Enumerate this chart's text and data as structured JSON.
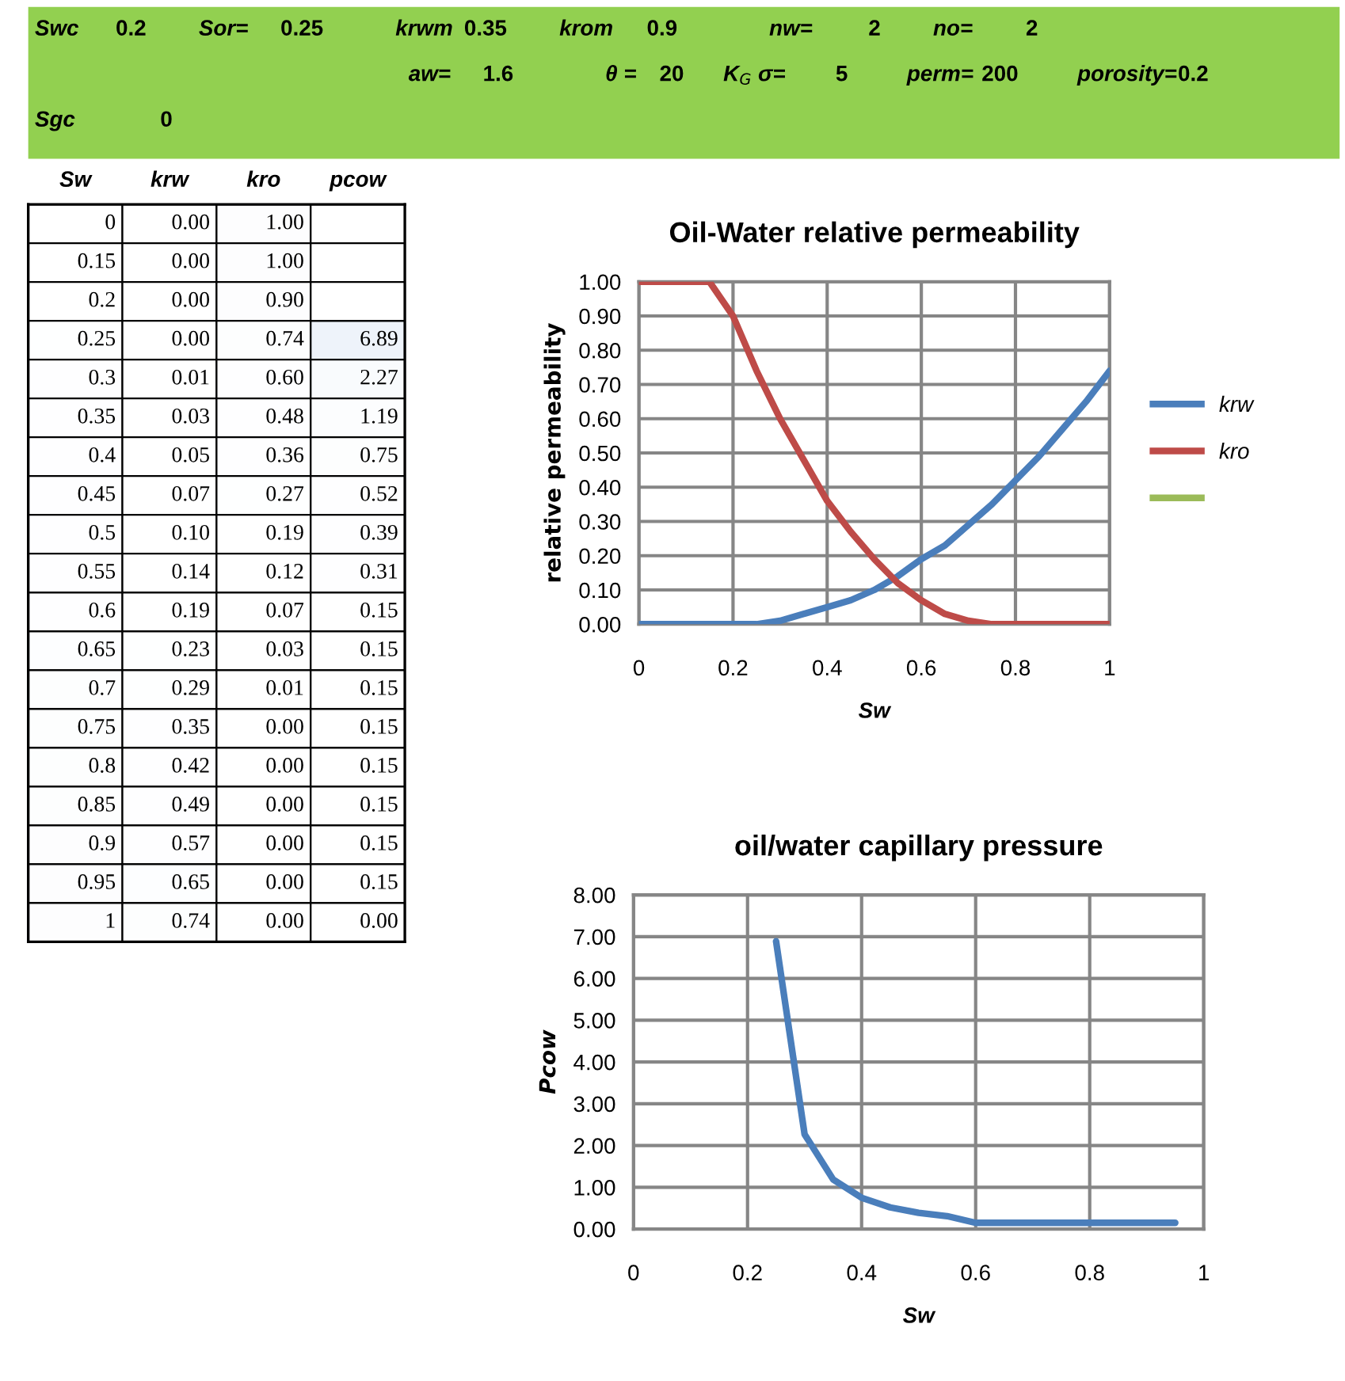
{
  "chart_data": [
    {
      "type": "other",
      "annotations": [
        "Swc",
        "0.2",
        "Sor=",
        "0.25",
        "krwm",
        "0.35",
        "krom",
        "0.9",
        "nw=",
        "2",
        "no=",
        "2",
        "aw=",
        "1.6",
        "θ =",
        "20",
        "K$_{G}$ σ=",
        "5",
        "perm=",
        "200",
        "porosity=",
        "0.2",
        "Sgc",
        "0"
      ]
    },
    {
      "type": "heatmap",
      "categories": [
        "Sw",
        "krw",
        "kro",
        "pcow"
      ],
      "y_categories": [
        null,
        null,
        null,
        null,
        null,
        null,
        null,
        null,
        null,
        null,
        null,
        null,
        null,
        null,
        null,
        null,
        null,
        null,
        null
      ],
      "cells": [
        [
          0,
          0.0,
          1.0,
          null
        ],
        [
          0.15,
          0.0,
          1.0,
          null
        ],
        [
          0.2,
          0.0,
          0.9,
          null
        ],
        [
          0.25,
          0.0,
          0.74,
          6.89
        ],
        [
          0.3,
          0.01,
          0.6,
          2.27
        ],
        [
          0.35,
          0.03,
          0.48,
          1.19
        ],
        [
          0.4,
          0.05,
          0.36,
          0.75
        ],
        [
          0.45,
          0.07,
          0.27,
          0.52
        ],
        [
          0.5,
          0.1,
          0.19,
          0.39
        ],
        [
          0.55,
          0.14,
          0.12,
          0.31
        ],
        [
          0.6,
          0.19,
          0.07,
          0.15
        ],
        [
          0.65,
          0.23,
          0.03,
          0.15
        ],
        [
          0.7,
          0.29,
          0.01,
          0.15
        ],
        [
          0.75,
          0.35,
          0.0,
          0.15
        ],
        [
          0.8,
          0.42,
          0.0,
          0.15
        ],
        [
          0.85,
          0.49,
          0.0,
          0.15
        ],
        [
          0.9,
          0.57,
          0.0,
          0.15
        ],
        [
          0.95,
          0.65,
          0.0,
          0.15
        ],
        [
          1,
          0.74,
          0.0,
          0.0
        ]
      ],
      "cell_labels": [
        [
          "0",
          "0.00",
          "1.00",
          null
        ],
        [
          "0.15",
          "0.00",
          "1.00",
          null
        ],
        [
          "0.2",
          "0.00",
          "0.90",
          null
        ],
        [
          "0.25",
          "0.00",
          "0.74",
          "6.89"
        ],
        [
          "0.3",
          "0.01",
          "0.60",
          "2.27"
        ],
        [
          "0.35",
          "0.03",
          "0.48",
          "1.19"
        ],
        [
          "0.4",
          "0.05",
          "0.36",
          "0.75"
        ],
        [
          "0.45",
          "0.07",
          "0.27",
          "0.52"
        ],
        [
          "0.5",
          "0.10",
          "0.19",
          "0.39"
        ],
        [
          "0.55",
          "0.14",
          "0.12",
          "0.31"
        ],
        [
          "0.6",
          "0.19",
          "0.07",
          "0.15"
        ],
        [
          "0.65",
          "0.23",
          "0.03",
          "0.15"
        ],
        [
          "0.7",
          "0.29",
          "0.01",
          "0.15"
        ],
        [
          "0.75",
          "0.35",
          "0.00",
          "0.15"
        ],
        [
          "0.8",
          "0.42",
          "0.00",
          "0.15"
        ],
        [
          "0.85",
          "0.49",
          "0.00",
          "0.15"
        ],
        [
          "0.9",
          "0.57",
          "0.00",
          "0.15"
        ],
        [
          "0.95",
          "0.65",
          "0.00",
          "0.15"
        ],
        [
          "1",
          "0.74",
          "0.00",
          "0.00"
        ]
      ]
    },
    {
      "type": "line",
      "title": "Oil-Water relative permeability",
      "xlabel": "Sw",
      "ylabel": "relative permeability",
      "x": [
        0,
        0.15,
        0.2,
        0.25,
        0.3,
        0.35,
        0.4,
        0.45,
        0.5,
        0.55,
        0.6,
        0.65,
        0.7,
        0.75,
        0.8,
        0.85,
        0.9,
        0.95,
        1
      ],
      "series": [
        {
          "name": "krw",
          "color": "#4a7ebb",
          "values": [
            0.0,
            0.0,
            0.0,
            0.0,
            0.01,
            0.03,
            0.05,
            0.07,
            0.1,
            0.14,
            0.19,
            0.23,
            0.29,
            0.35,
            0.42,
            0.49,
            0.57,
            0.65,
            0.74
          ]
        },
        {
          "name": "kro",
          "color": "#be4b48",
          "values": [
            1.0,
            1.0,
            0.9,
            0.74,
            0.6,
            0.48,
            0.36,
            0.27,
            0.19,
            0.12,
            0.07,
            0.03,
            0.01,
            0.0,
            0.0,
            0.0,
            0.0,
            0.0,
            0.0
          ]
        },
        {
          "color": "#9bbb59",
          "values": [
            null,
            null,
            null,
            null,
            null,
            null,
            null,
            null,
            null,
            null,
            null,
            null,
            null,
            null,
            null,
            null,
            null,
            null,
            null
          ]
        }
      ],
      "xlim": [
        0,
        1
      ],
      "ylim": [
        0,
        1
      ],
      "xticks": [
        0,
        0.2,
        0.4,
        0.6,
        0.8,
        1
      ],
      "yticks": [
        {
          "value": 0,
          "label": "0.00"
        },
        {
          "value": 0.1,
          "label": "0.10"
        },
        {
          "value": 0.2,
          "label": "0.20"
        },
        {
          "value": 0.3,
          "label": "0.30"
        },
        {
          "value": 0.4,
          "label": "0.40"
        },
        {
          "value": 0.5,
          "label": "0.50"
        },
        {
          "value": 0.6,
          "label": "0.60"
        },
        {
          "value": 0.7,
          "label": "0.70"
        },
        {
          "value": 0.8,
          "label": "0.80"
        },
        {
          "value": 0.9,
          "label": "0.90"
        },
        {
          "value": 1,
          "label": "1.00"
        }
      ],
      "grid": true,
      "legend": "right"
    },
    {
      "type": "line",
      "title": "oil/water capillary pressure",
      "xlabel": "Sw",
      "ylabel": "Pcow",
      "x": [
        0.25,
        0.3,
        0.35,
        0.4,
        0.45,
        0.5,
        0.55,
        0.6,
        0.65,
        0.7,
        0.75,
        0.8,
        0.85,
        0.9,
        0.95
      ],
      "series": [
        {
          "color": "#4a7ebb",
          "values": [
            6.89,
            2.27,
            1.19,
            0.75,
            0.52,
            0.39,
            0.31,
            0.15,
            0.15,
            0.15,
            0.15,
            0.15,
            0.15,
            0.15,
            0.15
          ]
        }
      ],
      "xlim": [
        0,
        1
      ],
      "ylim": [
        0,
        8
      ],
      "xticks": [
        0,
        0.2,
        0.4,
        0.6,
        0.8,
        1
      ],
      "yticks": [
        {
          "value": 0,
          "label": "0.00"
        },
        {
          "value": 1,
          "label": "1.00"
        },
        {
          "value": 2,
          "label": "2.00"
        },
        {
          "value": 3,
          "label": "3.00"
        },
        {
          "value": 4,
          "label": "4.00"
        },
        {
          "value": 5,
          "label": "5.00"
        },
        {
          "value": 6,
          "label": "6.00"
        },
        {
          "value": 7,
          "label": "7.00"
        },
        {
          "value": 8,
          "label": "8.00"
        }
      ],
      "grid": true
    }
  ]
}
